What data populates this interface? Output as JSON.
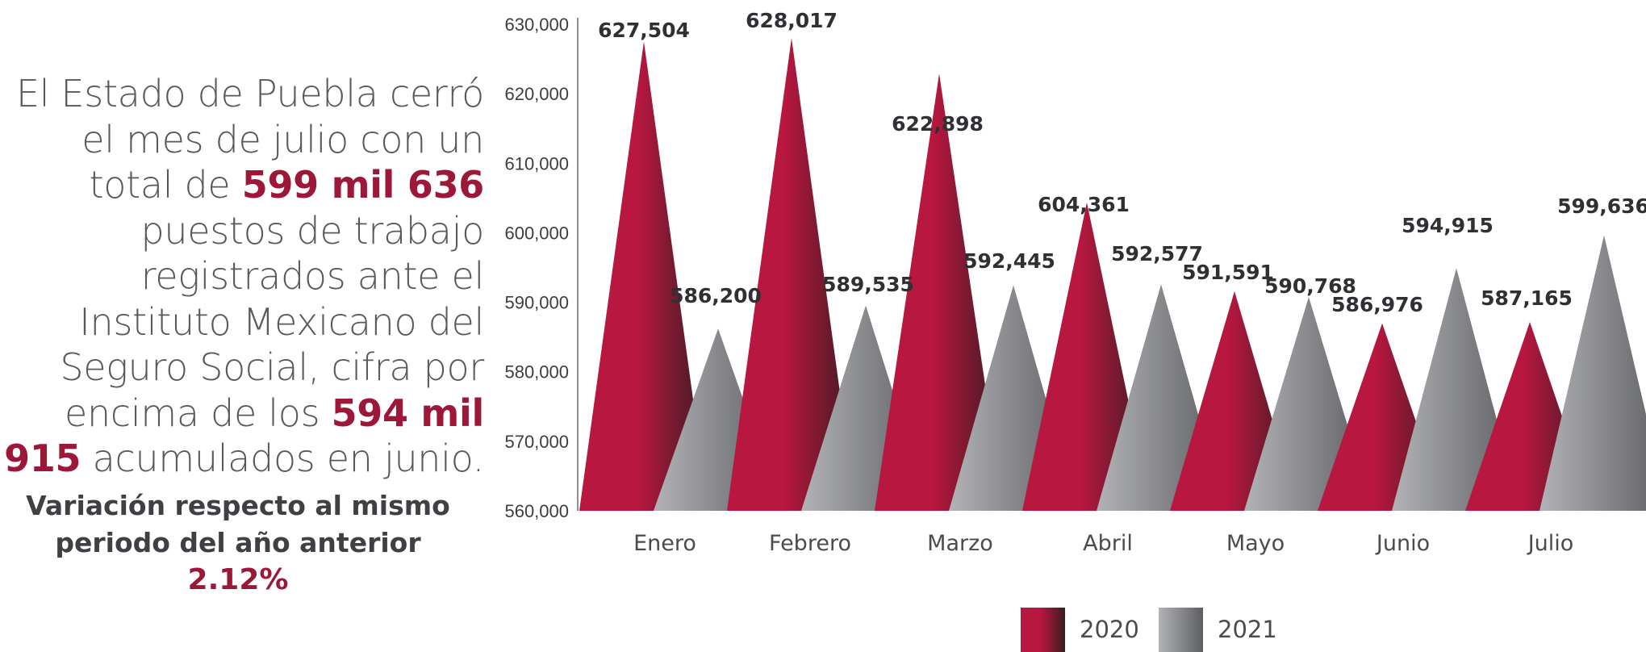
{
  "intro": {
    "part1": "El Estado de Puebla cerró el mes de julio con un total de",
    "highlight1": "599 mil 636",
    "part2": "puestos de trabajo registrados ante el Instituto Mexicano del Seguro Social, cifra por encima de los",
    "highlight2": "594 mil 915",
    "part3": "acumulados en junio."
  },
  "variation": {
    "label": "Variación respecto al mismo periodo del año anterior",
    "value": "2.12%"
  },
  "colors": {
    "series_2020_light": "#b8173f",
    "series_2020_dark": "#3a1c22",
    "series_2021_light": "#b2b3b6",
    "series_2021_dark": "#5d5e62",
    "highlight": "#9d1738"
  },
  "chart_data": {
    "type": "bar",
    "categories": [
      "Enero",
      "Febrero",
      "Marzo",
      "Abril",
      "Mayo",
      "Junio",
      "Julio"
    ],
    "series": [
      {
        "name": "2020",
        "values": [
          627504,
          628017,
          622898,
          604361,
          591591,
          586976,
          587165
        ],
        "labels": [
          "627,504",
          "628,017",
          "622,898",
          "604,361",
          "591,591",
          "586,976",
          "587,165"
        ]
      },
      {
        "name": "2021",
        "values": [
          586200,
          589535,
          592445,
          592577,
          590768,
          594915,
          599636
        ],
        "labels": [
          "586,200",
          "589,535",
          "592,445",
          "592,577",
          "590,768",
          "594,915",
          "599,636"
        ]
      }
    ],
    "ylim": [
      560000,
      630000
    ],
    "yticks": [
      560000,
      570000,
      580000,
      590000,
      600000,
      610000,
      620000,
      630000
    ],
    "ytick_labels": [
      "560,000",
      "570,000",
      "580,000",
      "590,000",
      "600,000",
      "610,000",
      "620,000",
      "630,000"
    ],
    "legend": {
      "position": "bottom-right",
      "entries": [
        "2020",
        "2021"
      ]
    },
    "grid": false
  }
}
